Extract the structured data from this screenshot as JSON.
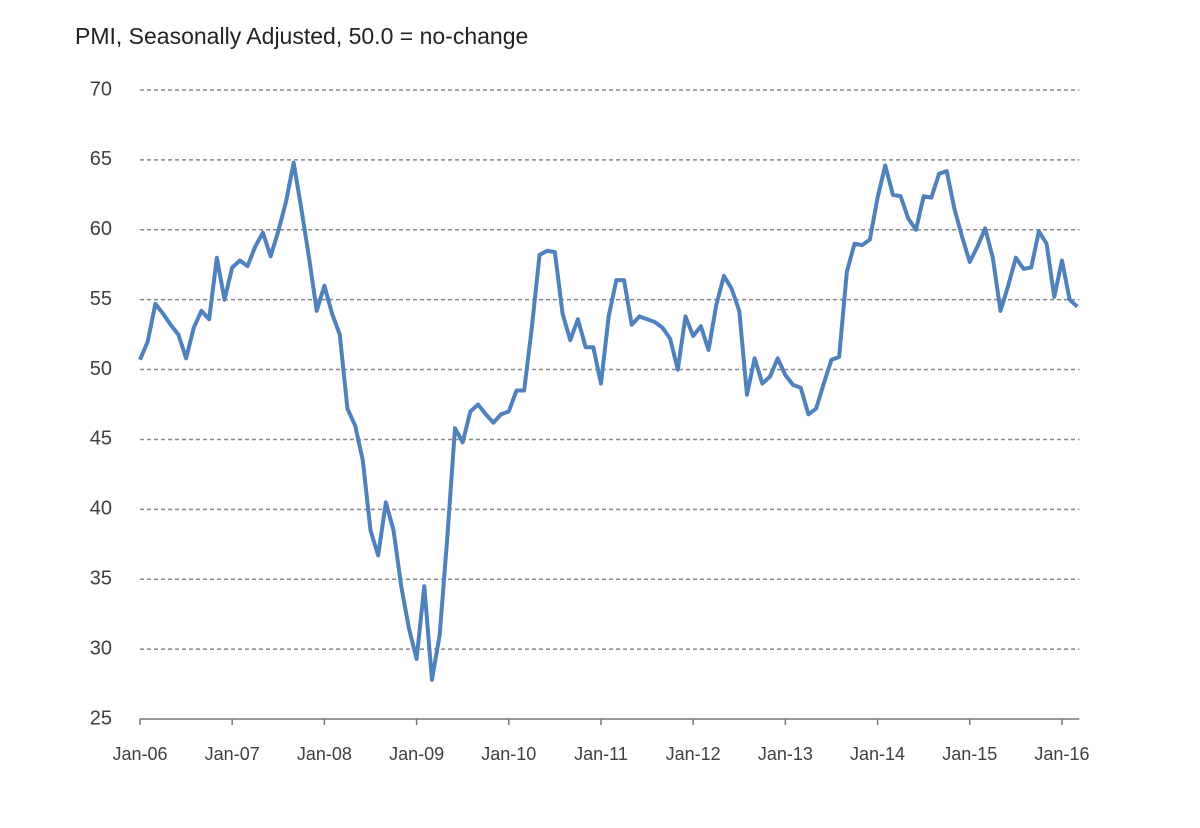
{
  "chart_data": {
    "type": "line",
    "title": "PMI, Seasonally Adjusted, 50.0 = no-change",
    "categories": [
      "Jan-06",
      null,
      null,
      null,
      null,
      null,
      null,
      null,
      null,
      null,
      null,
      null,
      "Jan-07",
      null,
      null,
      null,
      null,
      null,
      null,
      null,
      null,
      null,
      null,
      null,
      "Jan-08",
      null,
      null,
      null,
      null,
      null,
      null,
      null,
      null,
      null,
      null,
      null,
      "Jan-09",
      null,
      null,
      null,
      null,
      null,
      null,
      null,
      null,
      null,
      null,
      null,
      "Jan-10",
      null,
      null,
      null,
      null,
      null,
      null,
      null,
      null,
      null,
      null,
      null,
      "Jan-11",
      null,
      null,
      null,
      null,
      null,
      null,
      null,
      null,
      null,
      null,
      null,
      "Jan-12",
      null,
      null,
      null,
      null,
      null,
      null,
      null,
      null,
      null,
      null,
      null,
      "Jan-13",
      null,
      null,
      null,
      null,
      null,
      null,
      null,
      null,
      null,
      null,
      null,
      "Jan-14",
      null,
      null,
      null,
      null,
      null,
      null,
      null,
      null,
      null,
      null,
      null,
      "Jan-15",
      null,
      null,
      null,
      null,
      null,
      null,
      null,
      null,
      null,
      null,
      null,
      "Jan-16",
      null,
      null
    ],
    "series": [
      {
        "name": "PMI",
        "color": "#4f81bd",
        "values": [
          50.7,
          52,
          54.7,
          54,
          53.2,
          52.5,
          50.8,
          53,
          54.2,
          53.6,
          58,
          55,
          57.3,
          57.8,
          57.4,
          58.8,
          59.8,
          58.1,
          59.9,
          62,
          64.8,
          61.5,
          58,
          54.2,
          56,
          54,
          52.5,
          47.2,
          46,
          43.5,
          38.5,
          36.7,
          40.5,
          38.5,
          34.5,
          31.5,
          29.3,
          34.5,
          27.8,
          31,
          38,
          45.8,
          44.8,
          47,
          47.5,
          46.8,
          46.2,
          46.8,
          47,
          48.5,
          48.5,
          53,
          58.2,
          58.5,
          58.4,
          54,
          52.1,
          53.6,
          51.6,
          51.6,
          49,
          53.8,
          56.4,
          56.4,
          53.2,
          53.8,
          53.6,
          53.4,
          53,
          52.2,
          50,
          53.8,
          52.4,
          53.1,
          51.4,
          54.6,
          56.7,
          55.8,
          54.2,
          48.2,
          50.8,
          49,
          49.5,
          50.8,
          49.6,
          48.9,
          48.7,
          46.8,
          47.2,
          49,
          50.7,
          50.9,
          57,
          59,
          58.9,
          59.3,
          62.3,
          64.6,
          62.5,
          62.4,
          60.8,
          60,
          62.4,
          62.3,
          64,
          64.2,
          61.5,
          59.5,
          57.7,
          58.8,
          60.1,
          58,
          54.2,
          56,
          58,
          57.2,
          57.3,
          59.9,
          59,
          55.2,
          57.8,
          55,
          54.5
        ]
      }
    ],
    "ylim": [
      25,
      70
    ],
    "yticks": [
      25,
      30,
      35,
      40,
      45,
      50,
      55,
      60,
      65,
      70
    ],
    "grid": true
  }
}
